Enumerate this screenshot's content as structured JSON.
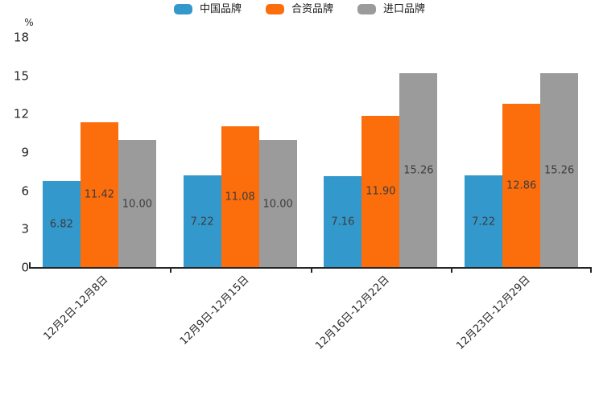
{
  "chart_data": {
    "type": "bar",
    "title": "",
    "xlabel": "",
    "ylabel": "%",
    "ylim": [
      0,
      18
    ],
    "yticks": [
      0,
      3,
      6,
      9,
      12,
      15,
      18
    ],
    "grid": false,
    "legend_position": "top",
    "value_label_decimals": 2,
    "categories": [
      "12月2日-12月8日",
      "12月9日-12月15日",
      "12月16日-12月22日",
      "12月23日-12月29日"
    ],
    "series": [
      {
        "name": "中国品牌",
        "color": "#3398CB",
        "values": [
          6.82,
          7.22,
          7.16,
          7.22
        ]
      },
      {
        "name": "合资品牌",
        "color": "#FC6D0C",
        "values": [
          11.42,
          11.08,
          11.9,
          12.86
        ]
      },
      {
        "name": "进口品牌",
        "color": "#9B9B9B",
        "values": [
          10.0,
          10.0,
          15.26,
          15.26
        ]
      }
    ],
    "colors": {
      "axis": "#262626",
      "tick_text": "#262626",
      "value_label_text": "#3d3d3d",
      "legend_text": "#1a1a1a",
      "background": "#ffffff"
    }
  }
}
